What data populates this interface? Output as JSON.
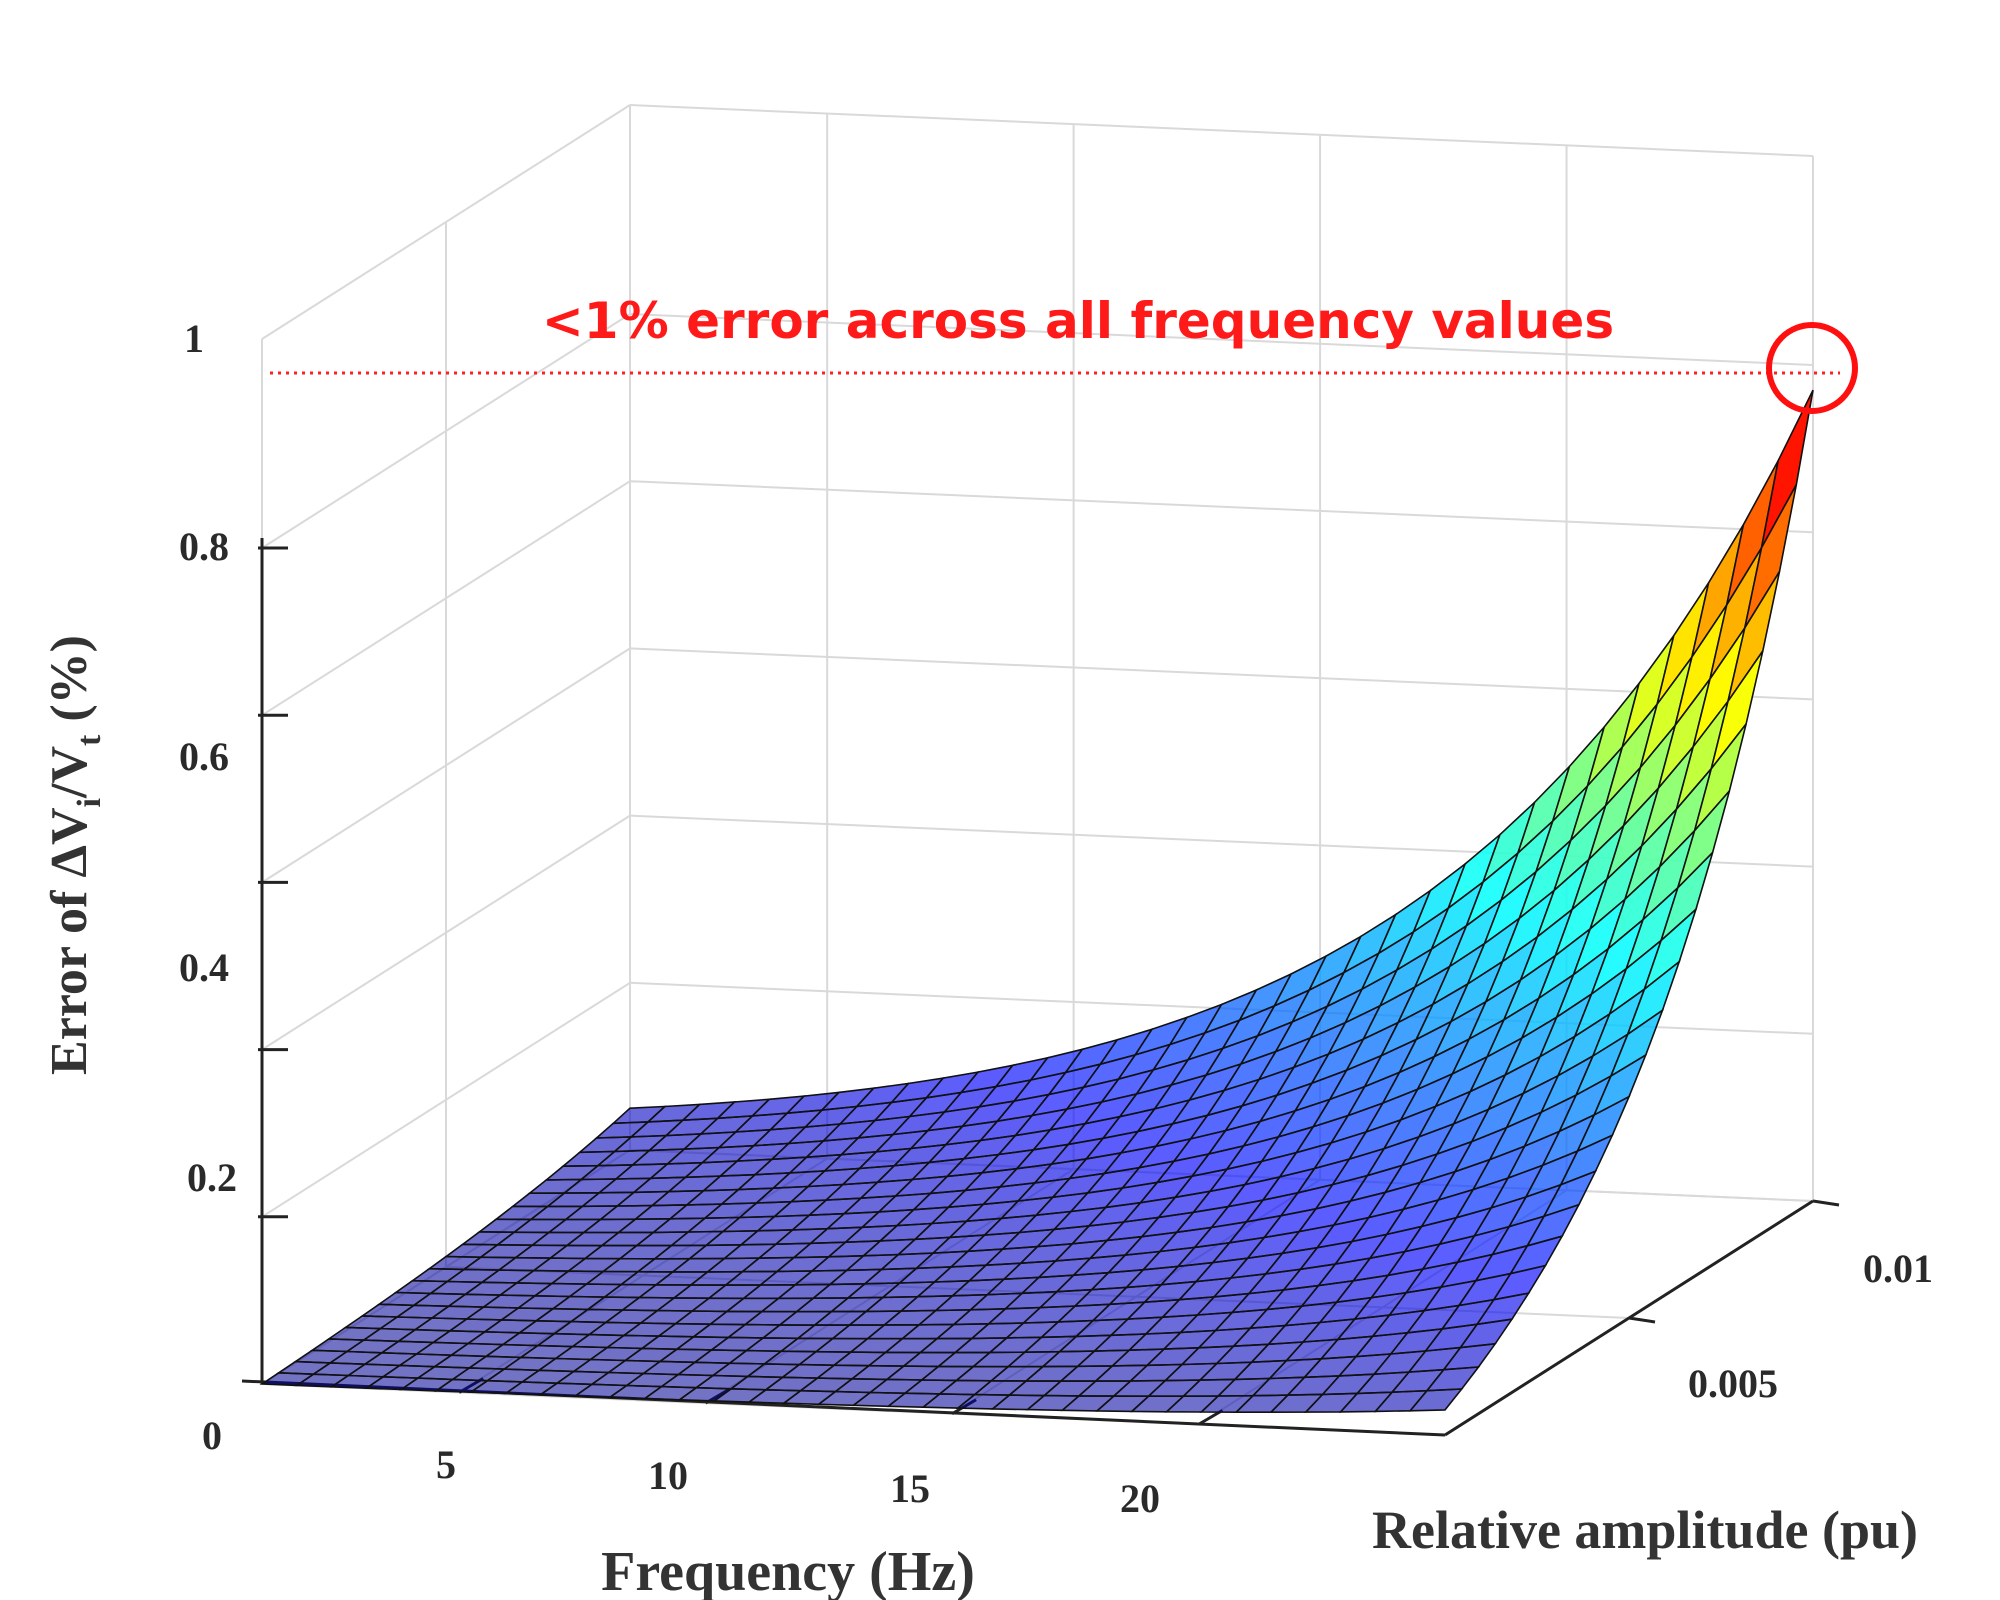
{
  "chart_data": {
    "type": "surface3d",
    "zlabel_parts": {
      "prefix": "Error of ",
      "symbol": "Δ",
      "v1": "V",
      "sub1": "i",
      "slash": "/",
      "v2": "V",
      "sub2": "t",
      "suffix": " (%)"
    },
    "xlabel": "Frequency (Hz)",
    "ylabel": "Relative amplitude (pu)",
    "x_ticks": [
      "5",
      "10",
      "15",
      "20"
    ],
    "y_ticks": [
      "0.005",
      "0.01"
    ],
    "z_ticks": [
      "0",
      "0.2",
      "0.4",
      "0.6",
      "0.8",
      "1"
    ],
    "xlim": [
      1,
      25
    ],
    "ylim": [
      0,
      0.01
    ],
    "zlim": [
      0,
      1
    ],
    "colormap": "jet",
    "grid": true,
    "annotation": {
      "text": "<1% error across all frequency values",
      "color": "#ff0000",
      "z_value": 0.97
    },
    "surface_corners": [
      {
        "x": 1,
        "y": 0,
        "z": 0
      },
      {
        "x": 25,
        "y": 0,
        "z": 0.03
      },
      {
        "x": 1,
        "y": 0.01,
        "z": 0.05
      },
      {
        "x": 25,
        "y": 0.01,
        "z": 0.97
      }
    ]
  }
}
